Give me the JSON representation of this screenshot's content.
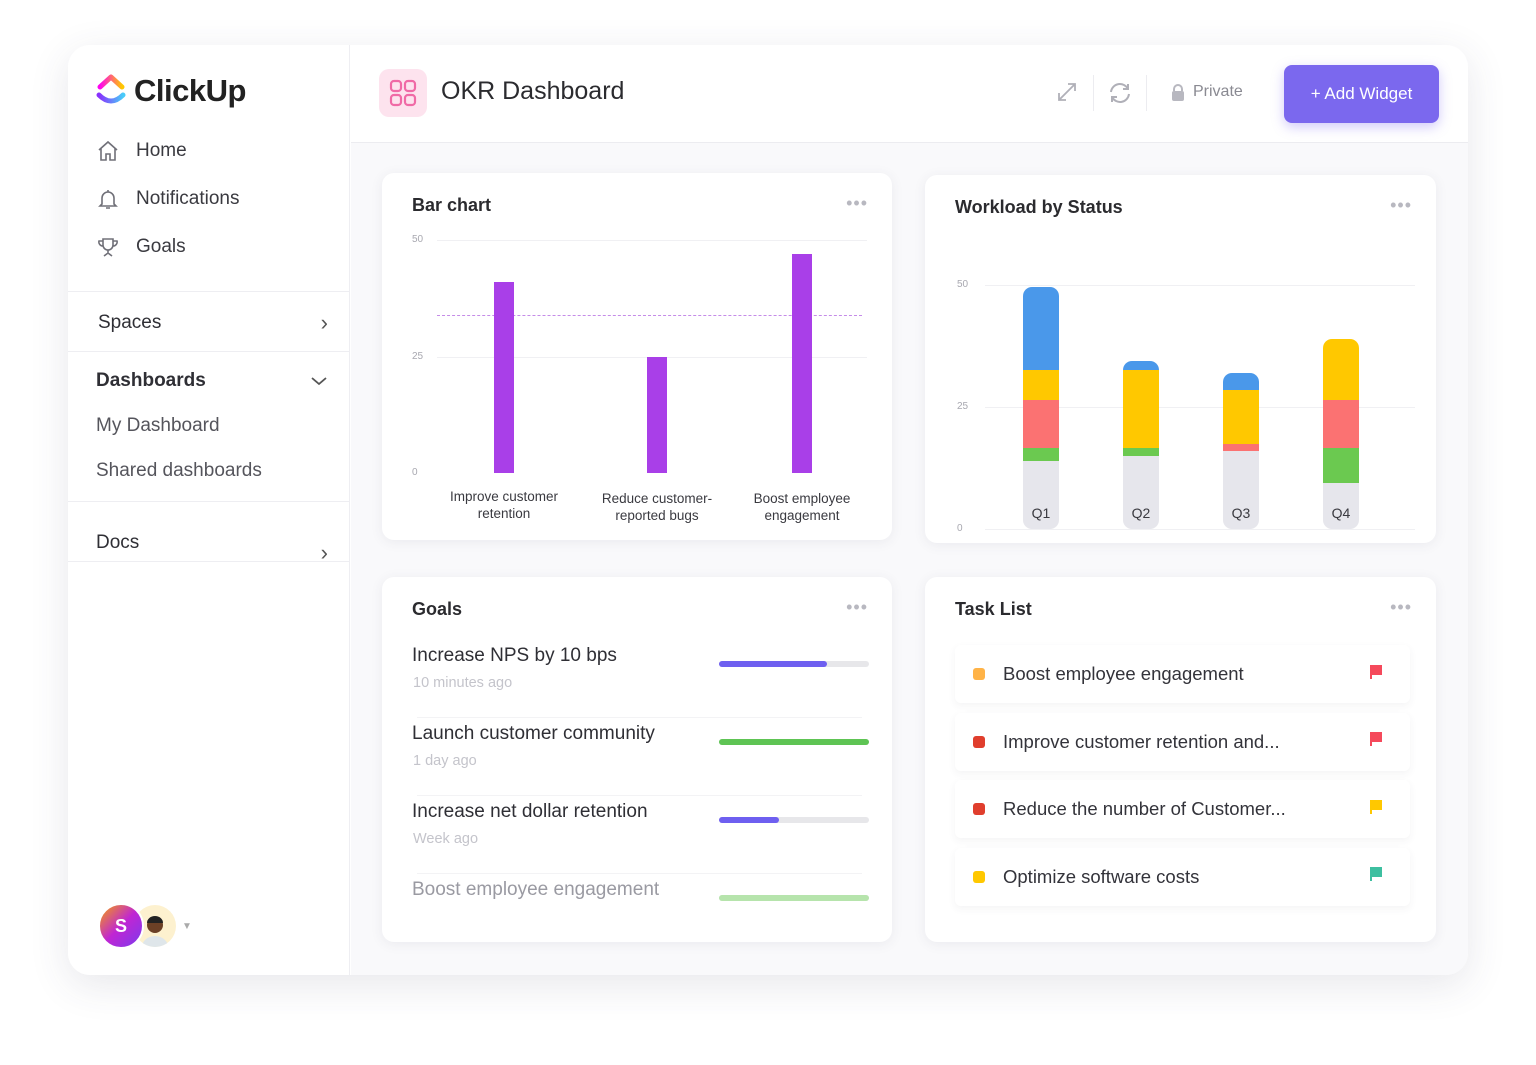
{
  "brand": {
    "name": "ClickUp"
  },
  "sidebar": {
    "nav": [
      {
        "label": "Home",
        "icon": "home-icon"
      },
      {
        "label": "Notifications",
        "icon": "bell-icon"
      },
      {
        "label": "Goals",
        "icon": "trophy-icon"
      }
    ],
    "spaces": "Spaces",
    "dashboards": "Dashboards",
    "dashboard_items": [
      "My Dashboard",
      "Shared dashboards"
    ],
    "docs": "Docs",
    "user_initial": "S"
  },
  "header": {
    "title": "OKR Dashboard",
    "privacy": "Private",
    "add_widget": "+ Add Widget",
    "accent": "#7b68ee"
  },
  "bar_card": {
    "title": "Bar chart",
    "more": "•••"
  },
  "workload_card": {
    "title": "Workload by Status",
    "more": "•••"
  },
  "chart_data": [
    {
      "type": "bar",
      "title": "Bar chart",
      "categories": [
        "Improve customer retention",
        "Reduce customer-reported bugs",
        "Boost employee engagement"
      ],
      "category_lines": [
        [
          "Improve customer",
          "retention"
        ],
        [
          "Reduce customer-",
          "reported bugs"
        ],
        [
          "Boost employee",
          "engagement"
        ]
      ],
      "values": [
        41,
        25,
        47
      ],
      "ylim": [
        0,
        50
      ],
      "yticks": [
        "0",
        "25",
        "50"
      ],
      "target_line": 34,
      "color": "#a93fe8",
      "grid": true
    },
    {
      "type": "bar",
      "stacked": true,
      "title": "Workload by Status",
      "categories": [
        "Q1",
        "Q2",
        "Q3",
        "Q4"
      ],
      "ylim": [
        0,
        50
      ],
      "yticks": [
        "0",
        "25",
        "50"
      ],
      "grid": true,
      "series": [
        {
          "color": "#e6e6ec",
          "values": [
            14,
            15,
            16,
            9.5
          ]
        },
        {
          "color": "#6bc950",
          "values": [
            2.5,
            1.5,
            0,
            7
          ]
        },
        {
          "color": "#fb7272",
          "values": [
            10,
            0,
            1.5,
            10
          ]
        },
        {
          "color": "#ffc800",
          "values": [
            6,
            16,
            11,
            12.5
          ]
        },
        {
          "color": "#4a98ea",
          "values": [
            17,
            2,
            3.5,
            0
          ]
        }
      ]
    }
  ],
  "goals_card": {
    "title": "Goals",
    "more": "•••",
    "items": [
      {
        "name": "Increase NPS by 10 bps",
        "time": "10 minutes ago",
        "progress": 0.72,
        "color": "#6e5ff0"
      },
      {
        "name": "Launch customer community",
        "time": "1 day ago",
        "progress": 1.0,
        "color": "#5ec454"
      },
      {
        "name": "Increase net dollar retention",
        "time": "Week ago",
        "progress": 0.4,
        "color": "#6e5ff0"
      },
      {
        "name": "Boost employee engagement",
        "time": "",
        "progress": 1.0,
        "color": "#b6e4ac"
      }
    ]
  },
  "tasks_card": {
    "title": "Task List",
    "more": "•••",
    "items": [
      {
        "name": "Boost employee engagement",
        "status_color": "#ffb347",
        "flag_color": "#f5495b"
      },
      {
        "name": "Improve customer retention and...",
        "status_color": "#e03e2d",
        "flag_color": "#f5495b"
      },
      {
        "name": "Reduce the number of Customer...",
        "status_color": "#e03e2d",
        "flag_color": "#ffc800"
      },
      {
        "name": "Optimize software costs",
        "status_color": "#ffc800",
        "flag_color": "#3dbfa0"
      }
    ]
  }
}
